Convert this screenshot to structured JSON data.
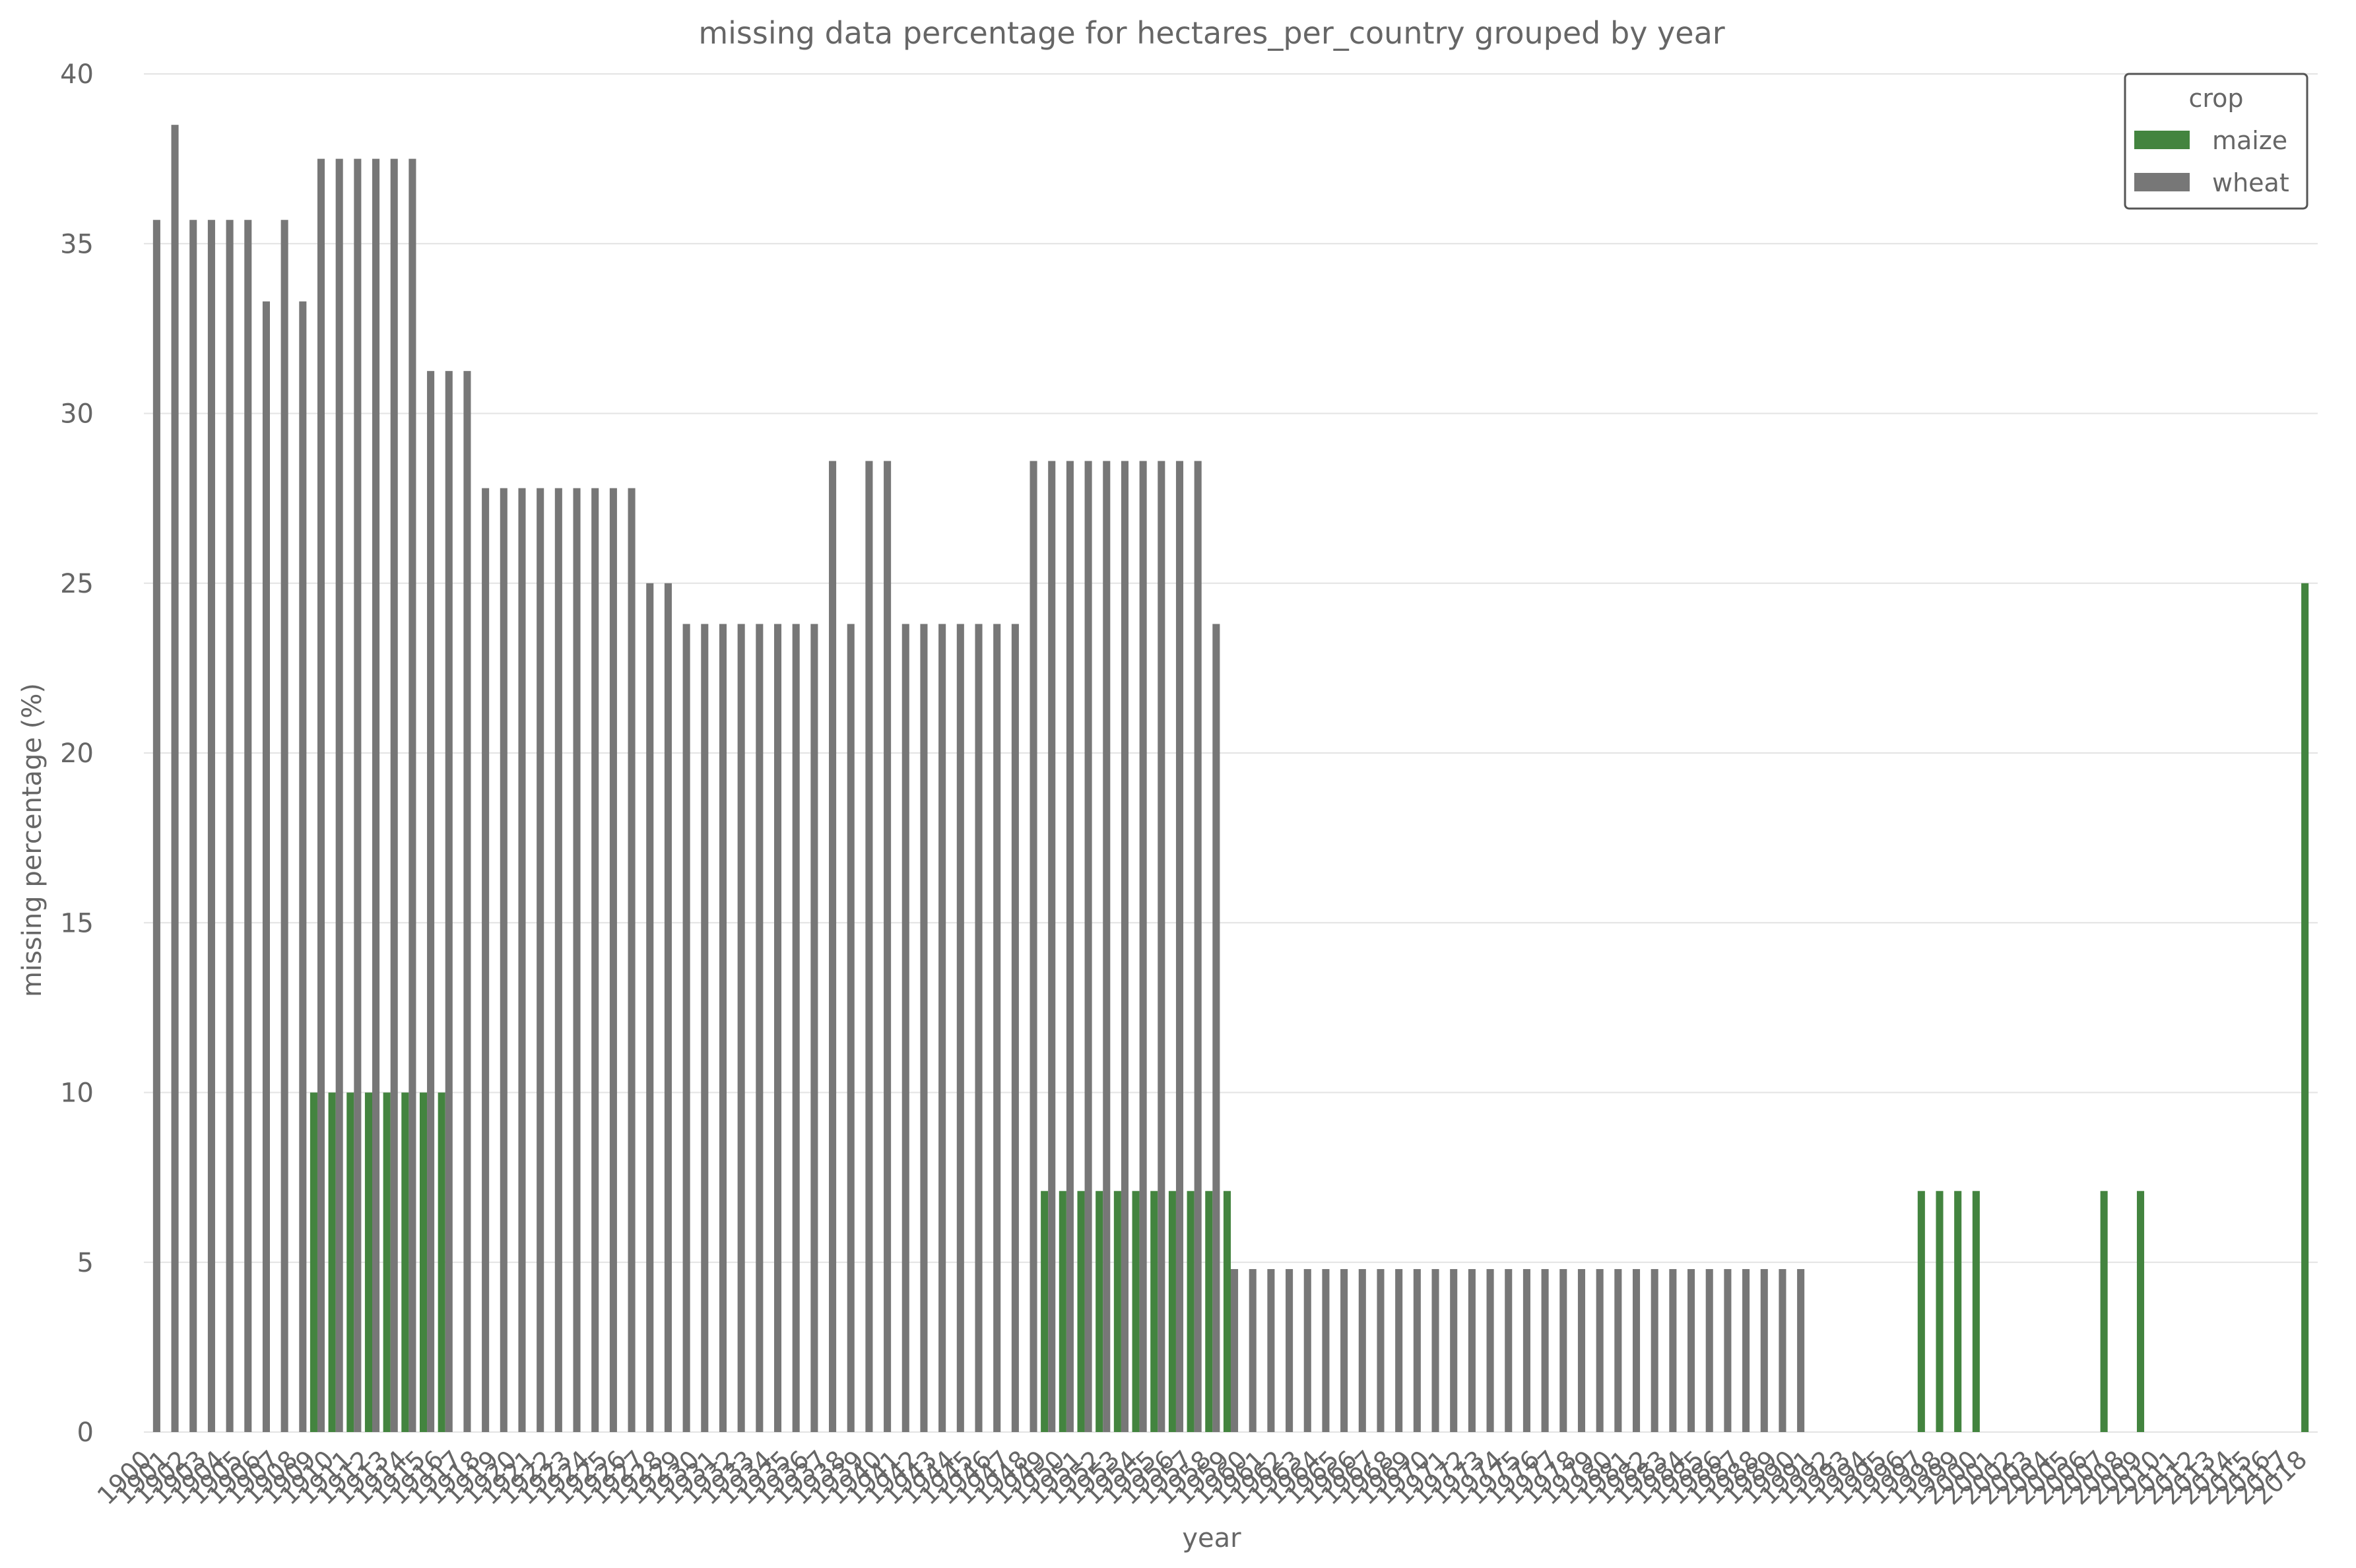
{
  "chart_data": {
    "type": "bar",
    "title": "missing data percentage for hectares_per_country grouped by year",
    "xlabel": "year",
    "ylabel": "missing percentage (%)",
    "ylim": [
      0,
      40
    ],
    "yticks": [
      0,
      5,
      10,
      15,
      20,
      25,
      30,
      35,
      40
    ],
    "grid": "horizontal",
    "legend": {
      "title": "crop",
      "position": "top-right"
    },
    "categories": [
      "1900",
      "1901",
      "1902",
      "1903",
      "1904",
      "1905",
      "1906",
      "1907",
      "1908",
      "1909",
      "1910",
      "1911",
      "1912",
      "1913",
      "1914",
      "1915",
      "1916",
      "1917",
      "1918",
      "1919",
      "1920",
      "1921",
      "1922",
      "1923",
      "1924",
      "1925",
      "1926",
      "1927",
      "1928",
      "1929",
      "1930",
      "1931",
      "1932",
      "1933",
      "1934",
      "1935",
      "1936",
      "1937",
      "1938",
      "1939",
      "1940",
      "1941",
      "1942",
      "1943",
      "1944",
      "1945",
      "1946",
      "1947",
      "1948",
      "1949",
      "1950",
      "1951",
      "1952",
      "1953",
      "1954",
      "1955",
      "1956",
      "1957",
      "1958",
      "1959",
      "1960",
      "1961",
      "1962",
      "1963",
      "1964",
      "1965",
      "1966",
      "1967",
      "1968",
      "1969",
      "1970",
      "1971",
      "1972",
      "1973",
      "1974",
      "1975",
      "1976",
      "1977",
      "1978",
      "1979",
      "1980",
      "1981",
      "1982",
      "1983",
      "1984",
      "1985",
      "1986",
      "1987",
      "1988",
      "1989",
      "1990",
      "1991",
      "1992",
      "1993",
      "1994",
      "1995",
      "1996",
      "1997",
      "1998",
      "1999",
      "2000",
      "2001",
      "2002",
      "2003",
      "2004",
      "2005",
      "2006",
      "2007",
      "2008",
      "2009",
      "2010",
      "2011",
      "2012",
      "2013",
      "2014",
      "2015",
      "2016",
      "2017",
      "2018"
    ],
    "series": [
      {
        "name": "maize",
        "color": "#43843f",
        "values": [
          0,
          0,
          0,
          0,
          0,
          0,
          0,
          0,
          0,
          10,
          10,
          10,
          10,
          10,
          10,
          10,
          10,
          0,
          0,
          0,
          0,
          0,
          0,
          0,
          0,
          0,
          0,
          0,
          0,
          0,
          0,
          0,
          0,
          0,
          0,
          0,
          0,
          0,
          0,
          0,
          0,
          0,
          0,
          0,
          0,
          0,
          0,
          0,
          0,
          7.1,
          7.1,
          7.1,
          7.1,
          7.1,
          7.1,
          7.1,
          7.1,
          7.1,
          7.1,
          7.1,
          0,
          0,
          0,
          0,
          0,
          0,
          0,
          0,
          0,
          0,
          0,
          0,
          0,
          0,
          0,
          0,
          0,
          0,
          0,
          0,
          0,
          0,
          0,
          0,
          0,
          0,
          0,
          0,
          0,
          0,
          0,
          0,
          0,
          0,
          0,
          0,
          0,
          7.1,
          7.1,
          7.1,
          7.1,
          0,
          0,
          0,
          0,
          0,
          0,
          7.1,
          0,
          7.1,
          0,
          0,
          0,
          0,
          0,
          0,
          0,
          0,
          25
        ]
      },
      {
        "name": "wheat",
        "color": "#777777",
        "values": [
          35.7,
          38.5,
          35.7,
          35.7,
          35.7,
          35.7,
          33.3,
          35.7,
          33.3,
          37.5,
          37.5,
          37.5,
          37.5,
          37.5,
          37.5,
          31.25,
          31.25,
          31.25,
          27.8,
          27.8,
          27.8,
          27.8,
          27.8,
          27.8,
          27.8,
          27.8,
          27.8,
          25,
          25,
          23.8,
          23.8,
          23.8,
          23.8,
          23.8,
          23.8,
          23.8,
          23.8,
          28.6,
          23.8,
          28.6,
          28.6,
          23.8,
          23.8,
          23.8,
          23.8,
          23.8,
          23.8,
          23.8,
          28.6,
          28.6,
          28.6,
          28.6,
          28.6,
          28.6,
          28.6,
          28.6,
          28.6,
          28.6,
          23.8,
          4.8,
          4.8,
          4.8,
          4.8,
          4.8,
          4.8,
          4.8,
          4.8,
          4.8,
          4.8,
          4.8,
          4.8,
          4.8,
          4.8,
          4.8,
          4.8,
          4.8,
          4.8,
          4.8,
          4.8,
          4.8,
          4.8,
          4.8,
          4.8,
          4.8,
          4.8,
          4.8,
          4.8,
          4.8,
          4.8,
          4.8,
          4.8,
          0,
          0,
          0,
          0,
          0,
          0,
          0,
          0,
          0,
          0,
          0,
          0,
          0,
          0,
          0,
          0,
          0,
          0,
          0,
          0,
          0,
          0,
          0,
          0,
          0,
          0,
          0,
          0
        ]
      }
    ]
  }
}
